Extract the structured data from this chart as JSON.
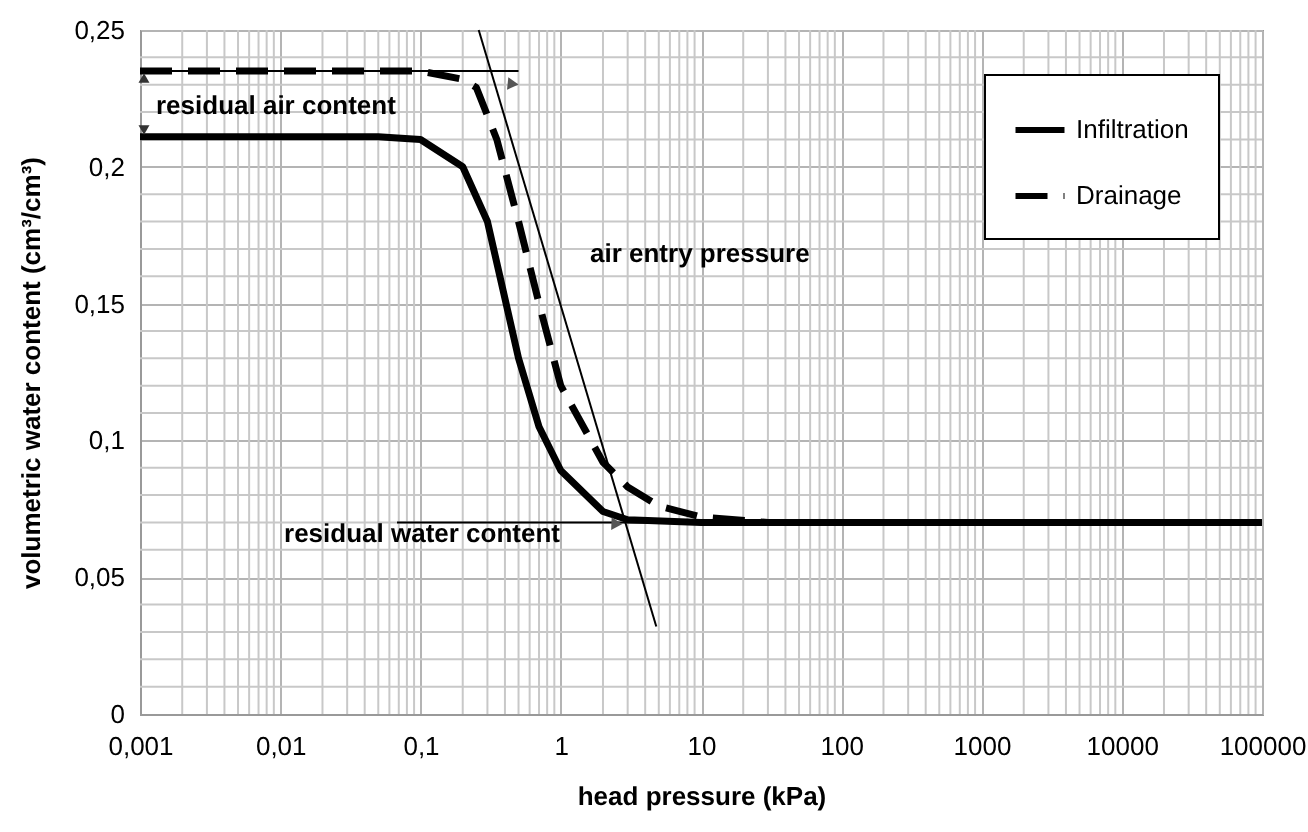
{
  "chart_data": {
    "type": "line",
    "xlabel": "head pressure (kPa)",
    "ylabel": "volumetric  water  content (cm³/cm³)",
    "log": "x",
    "grid": true,
    "legend": "top right",
    "marker": "none",
    "xlim": [
      0.001,
      100000
    ],
    "xticks": [
      {
        "value": 0.001,
        "label": "0,001"
      },
      {
        "value": 0.01,
        "label": "0,01"
      },
      {
        "value": 0.1,
        "label": "0,1"
      },
      1,
      10,
      100,
      1000,
      10000,
      100000
    ],
    "ylim": [
      0,
      0.25
    ],
    "yticks": [
      0,
      {
        "value": 0.05,
        "label": "0,05"
      },
      {
        "value": 0.1,
        "label": "0,1"
      },
      {
        "value": 0.15,
        "label": "0,15"
      },
      {
        "value": 0.2,
        "label": "0,2"
      },
      {
        "value": 0.25,
        "label": "0,25"
      }
    ],
    "series": [
      {
        "name": "Infiltration",
        "color": "#000000",
        "line_style": "solid",
        "x": [
          0.001,
          0.05,
          0.1,
          0.2,
          0.3,
          0.5,
          0.7,
          1,
          2,
          3,
          10,
          100000
        ],
        "values": [
          0.211,
          0.211,
          0.21,
          0.2,
          0.18,
          0.13,
          0.105,
          0.089,
          0.074,
          0.071,
          0.07,
          0.07
        ]
      },
      {
        "name": "Drainage",
        "color": "#000000",
        "line_style": "dashed",
        "x": [
          0.001,
          0.1,
          0.2,
          0.25,
          0.35,
          0.5,
          0.7,
          1,
          2,
          3,
          5,
          10,
          30,
          100000
        ],
        "values": [
          0.235,
          0.235,
          0.232,
          0.229,
          0.21,
          0.18,
          0.15,
          0.12,
          0.092,
          0.083,
          0.076,
          0.072,
          0.07,
          0.07
        ]
      },
      {
        "color": "#000000",
        "line_style": "solid",
        "x": [
          0.001,
          0.5
        ],
        "values": [
          0.235,
          0.235
        ]
      },
      {
        "color": "#000000",
        "line_style": "solid",
        "x": [
          0.26,
          4.8
        ],
        "values": [
          0.25,
          0.032
        ]
      },
      {
        "color": "#000000",
        "line_style": "solid",
        "x": [
          0.068,
          10
        ],
        "values": [
          0.07,
          0.07
        ]
      }
    ],
    "annotations": [
      "residual air content",
      "air entry pressure",
      "residual water content"
    ]
  }
}
